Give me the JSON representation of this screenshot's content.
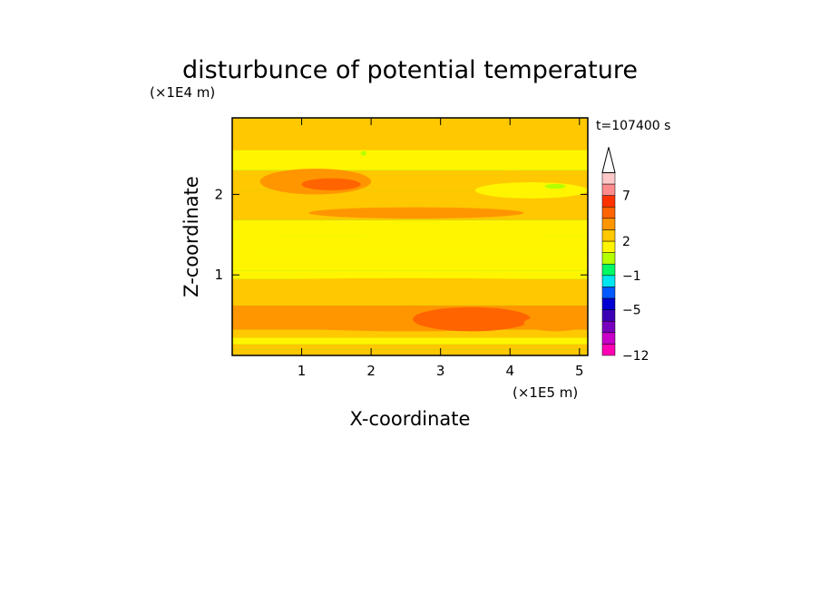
{
  "chart_data": {
    "type": "heatmap",
    "title": "disturbunce of potential temperature",
    "xlabel": "X-coordinate",
    "ylabel": "Z-coordinate",
    "x_unit_label": "(×1E5 m)",
    "y_unit_label": "(×1E4 m)",
    "time_label": "t=107400 s",
    "xlim": [
      0,
      5.12
    ],
    "ylim": [
      0,
      2.95
    ],
    "x_ticks": [
      1,
      2,
      3,
      4,
      5
    ],
    "y_ticks": [
      1,
      2
    ],
    "colorbar": {
      "levels": [
        -12,
        -5,
        -1,
        2,
        7
      ],
      "colors": [
        "#ff00b4",
        "#c800c8",
        "#7800be",
        "#3c00b4",
        "#0000d2",
        "#005aff",
        "#00e6f0",
        "#00fa64",
        "#b4ff00",
        "#fff500",
        "#ffc800",
        "#ff9600",
        "#ff6400",
        "#ff3200",
        "#ff8c8c",
        "#ffc8c8"
      ],
      "extend": "max"
    },
    "bands": [
      {
        "z0": 0.0,
        "z1": 0.07,
        "value": 0.5
      },
      {
        "z0": 0.07,
        "z1": 0.14,
        "value": 1.5
      },
      {
        "z0": 0.14,
        "z1": 0.22,
        "value": 0.0
      },
      {
        "z0": 0.22,
        "z1": 0.32,
        "value": 1.5
      },
      {
        "z0": 0.32,
        "z1": 0.62,
        "value": 2.5
      },
      {
        "z0": 0.62,
        "z1": 0.95,
        "value": 1.5
      },
      {
        "z0": 0.95,
        "z1": 1.05,
        "value": 0.0
      },
      {
        "z0": 1.05,
        "z1": 1.3,
        "value": 0.0
      },
      {
        "z0": 1.3,
        "z1": 1.48,
        "value": -0.5
      },
      {
        "z0": 1.48,
        "z1": 1.68,
        "value": 0.0
      },
      {
        "z0": 1.68,
        "z1": 1.88,
        "value": 1.5
      },
      {
        "z0": 1.88,
        "z1": 2.05,
        "value": 0.5
      },
      {
        "z0": 2.05,
        "z1": 2.3,
        "value": 1.5
      },
      {
        "z0": 2.3,
        "z1": 2.55,
        "value": 0.0
      },
      {
        "z0": 2.55,
        "z1": 2.95,
        "value": 0.5
      }
    ],
    "features": [
      {
        "x0": 0.0,
        "x1": 5.12,
        "z0": 0.3,
        "z1": 0.62,
        "value": 3.0
      },
      {
        "x0": 2.6,
        "x1": 4.3,
        "z0": 0.3,
        "z1": 0.6,
        "value": 3.5
      },
      {
        "x0": 4.2,
        "x1": 5.12,
        "z0": 0.3,
        "z1": 0.5,
        "value": 3.0
      },
      {
        "x0": 0.4,
        "x1": 2.0,
        "z0": 2.0,
        "z1": 2.32,
        "value": 3.0
      },
      {
        "x0": 1.0,
        "x1": 1.85,
        "z0": 2.05,
        "z1": 2.2,
        "value": 4.0
      },
      {
        "x0": 0.0,
        "x1": 0.8,
        "z0": 1.3,
        "z1": 1.5,
        "value": -0.5
      },
      {
        "x0": 1.3,
        "x1": 5.12,
        "z0": 1.32,
        "z1": 1.5,
        "value": -0.5
      },
      {
        "x0": 3.5,
        "x1": 5.12,
        "z0": 1.95,
        "z1": 2.15,
        "value": -0.5
      },
      {
        "x0": 3.6,
        "x1": 4.4,
        "z0": 2.3,
        "z1": 2.45,
        "value": -0.5
      },
      {
        "x0": 0.0,
        "x1": 0.35,
        "z0": 1.25,
        "z1": 1.35,
        "value": -0.5
      },
      {
        "x0": 4.5,
        "x1": 4.8,
        "z0": 2.07,
        "z1": 2.13,
        "value": -2.5
      },
      {
        "x0": 1.85,
        "x1": 1.93,
        "z0": 2.48,
        "z1": 2.54,
        "value": -2.5
      },
      {
        "x0": 1.1,
        "x1": 4.2,
        "z0": 1.7,
        "z1": 1.84,
        "value": 2.0
      },
      {
        "x0": 0.0,
        "x1": 5.12,
        "z0": 0.86,
        "z1": 0.96,
        "value": 0.5
      }
    ]
  }
}
